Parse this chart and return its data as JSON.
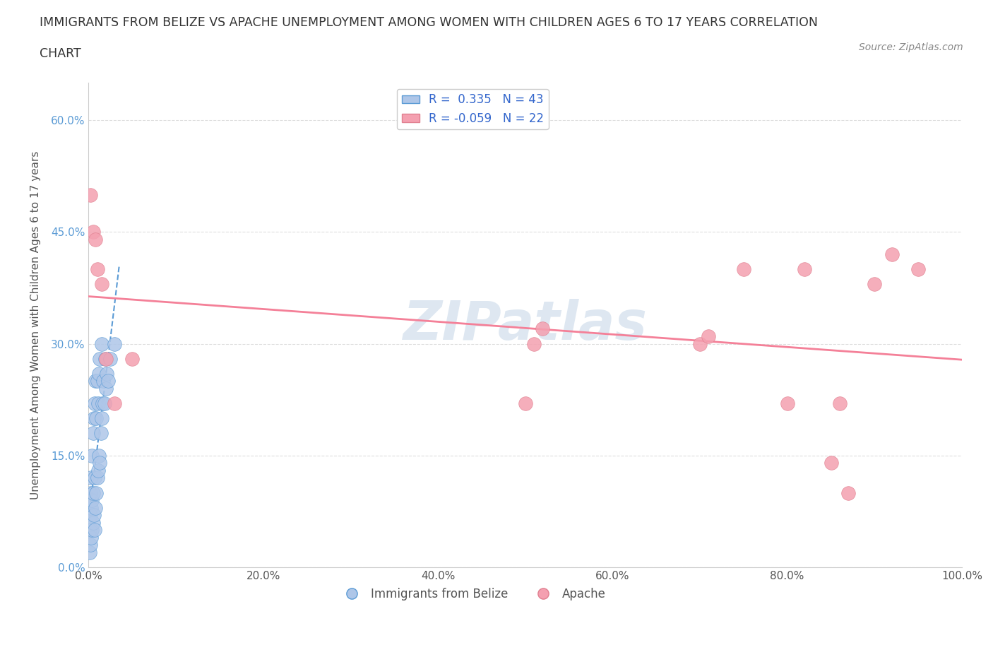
{
  "title_line1": "IMMIGRANTS FROM BELIZE VS APACHE UNEMPLOYMENT AMONG WOMEN WITH CHILDREN AGES 6 TO 17 YEARS CORRELATION",
  "title_line2": "CHART",
  "source_text": "Source: ZipAtlas.com",
  "ylabel": "Unemployment Among Women with Children Ages 6 to 17 years",
  "xlim": [
    0.0,
    1.0
  ],
  "ylim": [
    0.0,
    0.65
  ],
  "xtick_labels": [
    "0.0%",
    "20.0%",
    "40.0%",
    "60.0%",
    "80.0%",
    "100.0%"
  ],
  "xtick_values": [
    0.0,
    0.2,
    0.4,
    0.6,
    0.8,
    1.0
  ],
  "ytick_labels": [
    "0.0%",
    "15.0%",
    "30.0%",
    "45.0%",
    "60.0%"
  ],
  "ytick_values": [
    0.0,
    0.15,
    0.3,
    0.45,
    0.6
  ],
  "R_belize": 0.335,
  "N_belize": 43,
  "R_apache": -0.059,
  "N_apache": 22,
  "belize_color": "#aec6e8",
  "apache_color": "#f4a0b0",
  "belize_trend_color": "#5b9bd5",
  "apache_trend_color": "#f48098",
  "watermark_color": "#c8d8e8",
  "legend_label_belize": "Immigrants from Belize",
  "legend_label_apache": "Apache",
  "belize_points_x": [
    0.001,
    0.001,
    0.002,
    0.002,
    0.002,
    0.003,
    0.003,
    0.003,
    0.004,
    0.004,
    0.004,
    0.005,
    0.005,
    0.005,
    0.006,
    0.006,
    0.007,
    0.007,
    0.007,
    0.008,
    0.008,
    0.009,
    0.009,
    0.01,
    0.01,
    0.011,
    0.011,
    0.012,
    0.012,
    0.013,
    0.013,
    0.014,
    0.015,
    0.015,
    0.016,
    0.017,
    0.018,
    0.019,
    0.02,
    0.021,
    0.022,
    0.025,
    0.03
  ],
  "belize_points_y": [
    0.02,
    0.05,
    0.03,
    0.07,
    0.1,
    0.04,
    0.08,
    0.12,
    0.05,
    0.09,
    0.15,
    0.06,
    0.1,
    0.18,
    0.07,
    0.2,
    0.05,
    0.12,
    0.22,
    0.08,
    0.25,
    0.1,
    0.2,
    0.12,
    0.25,
    0.13,
    0.22,
    0.15,
    0.26,
    0.14,
    0.28,
    0.18,
    0.2,
    0.3,
    0.22,
    0.25,
    0.22,
    0.28,
    0.24,
    0.26,
    0.25,
    0.28,
    0.3
  ],
  "apache_points_x": [
    0.002,
    0.005,
    0.008,
    0.01,
    0.015,
    0.02,
    0.03,
    0.05,
    0.5,
    0.51,
    0.52,
    0.7,
    0.71,
    0.75,
    0.8,
    0.82,
    0.85,
    0.86,
    0.87,
    0.9,
    0.92,
    0.95
  ],
  "apache_points_y": [
    0.5,
    0.45,
    0.44,
    0.4,
    0.38,
    0.28,
    0.22,
    0.28,
    0.22,
    0.3,
    0.32,
    0.3,
    0.31,
    0.4,
    0.22,
    0.4,
    0.14,
    0.22,
    0.1,
    0.38,
    0.42,
    0.4
  ]
}
